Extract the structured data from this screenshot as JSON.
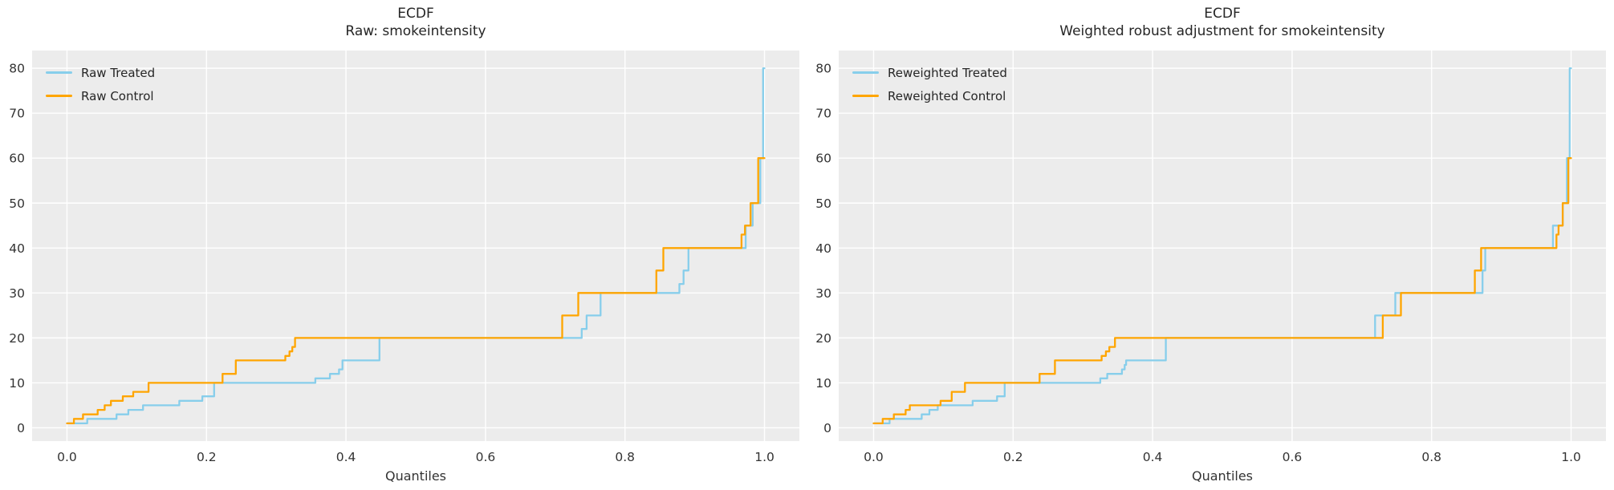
{
  "colors": {
    "figure_background": "#ffffff",
    "axes_background": "#ececec",
    "grid": "#ffffff",
    "text": "#333333",
    "treated": "#87CEEB",
    "control": "#FFA500"
  },
  "chart_data": [
    {
      "type": "line",
      "step": true,
      "title_lines": [
        "ECDF",
        "Raw: smokeintensity"
      ],
      "xlabel": "Quantiles",
      "ylabel": "",
      "xlim": [
        -0.05,
        1.05
      ],
      "ylim": [
        -2.95,
        83.95
      ],
      "x_ticks": [
        0.0,
        0.2,
        0.4,
        0.6,
        0.8,
        1.0
      ],
      "x_tick_labels": [
        "0.0",
        "0.2",
        "0.4",
        "0.6",
        "0.8",
        "1.0"
      ],
      "y_ticks": [
        0,
        10,
        20,
        30,
        40,
        50,
        60,
        70,
        80
      ],
      "y_tick_labels": [
        "0",
        "10",
        "20",
        "30",
        "40",
        "50",
        "60",
        "70",
        "80"
      ],
      "grid": true,
      "legend_position": "upper left",
      "series": [
        {
          "name": "Raw Treated",
          "color": "#87CEEB",
          "points": [
            [
              0.0,
              1
            ],
            [
              0.029,
              2
            ],
            [
              0.071,
              3
            ],
            [
              0.088,
              4
            ],
            [
              0.109,
              5
            ],
            [
              0.161,
              6
            ],
            [
              0.194,
              7
            ],
            [
              0.211,
              10
            ],
            [
              0.356,
              11
            ],
            [
              0.377,
              12
            ],
            [
              0.39,
              13
            ],
            [
              0.395,
              15
            ],
            [
              0.448,
              20
            ],
            [
              0.738,
              22
            ],
            [
              0.745,
              25
            ],
            [
              0.765,
              30
            ],
            [
              0.878,
              32
            ],
            [
              0.884,
              35
            ],
            [
              0.891,
              40
            ],
            [
              0.973,
              45
            ],
            [
              0.983,
              50
            ],
            [
              0.994,
              60
            ],
            [
              0.998,
              80
            ],
            [
              1.0,
              80
            ]
          ]
        },
        {
          "name": "Raw Control",
          "color": "#FFA500",
          "points": [
            [
              0.0,
              1
            ],
            [
              0.01,
              2
            ],
            [
              0.023,
              3
            ],
            [
              0.044,
              4
            ],
            [
              0.054,
              5
            ],
            [
              0.063,
              6
            ],
            [
              0.08,
              7
            ],
            [
              0.095,
              8
            ],
            [
              0.117,
              10
            ],
            [
              0.223,
              12
            ],
            [
              0.242,
              15
            ],
            [
              0.313,
              16
            ],
            [
              0.319,
              17
            ],
            [
              0.323,
              18
            ],
            [
              0.327,
              20
            ],
            [
              0.71,
              25
            ],
            [
              0.733,
              30
            ],
            [
              0.845,
              35
            ],
            [
              0.855,
              40
            ],
            [
              0.967,
              43
            ],
            [
              0.972,
              45
            ],
            [
              0.98,
              50
            ],
            [
              0.991,
              60
            ],
            [
              1.0,
              60
            ]
          ]
        }
      ]
    },
    {
      "type": "line",
      "step": true,
      "title_lines": [
        "ECDF",
        "Weighted robust adjustment for smokeintensity"
      ],
      "xlabel": "Quantiles",
      "ylabel": "",
      "xlim": [
        -0.05,
        1.05
      ],
      "ylim": [
        -2.95,
        83.95
      ],
      "x_ticks": [
        0.0,
        0.2,
        0.4,
        0.6,
        0.8,
        1.0
      ],
      "x_tick_labels": [
        "0.0",
        "0.2",
        "0.4",
        "0.6",
        "0.8",
        "1.0"
      ],
      "y_ticks": [
        0,
        10,
        20,
        30,
        40,
        50,
        60,
        70,
        80
      ],
      "y_tick_labels": [
        "0",
        "10",
        "20",
        "30",
        "40",
        "50",
        "60",
        "70",
        "80"
      ],
      "grid": true,
      "legend_position": "upper left",
      "series": [
        {
          "name": "Reweighted Treated",
          "color": "#87CEEB",
          "points": [
            [
              0.0,
              1
            ],
            [
              0.023,
              2
            ],
            [
              0.069,
              3
            ],
            [
              0.08,
              4
            ],
            [
              0.092,
              5
            ],
            [
              0.142,
              6
            ],
            [
              0.177,
              7
            ],
            [
              0.188,
              10
            ],
            [
              0.325,
              11
            ],
            [
              0.335,
              12
            ],
            [
              0.356,
              13
            ],
            [
              0.36,
              14
            ],
            [
              0.362,
              15
            ],
            [
              0.419,
              20
            ],
            [
              0.719,
              25
            ],
            [
              0.748,
              30
            ],
            [
              0.873,
              35
            ],
            [
              0.877,
              40
            ],
            [
              0.974,
              45
            ],
            [
              0.988,
              50
            ],
            [
              0.994,
              60
            ],
            [
              0.998,
              80
            ],
            [
              1.0,
              80
            ]
          ]
        },
        {
          "name": "Reweighted Control",
          "color": "#FFA500",
          "points": [
            [
              0.0,
              1
            ],
            [
              0.013,
              2
            ],
            [
              0.029,
              3
            ],
            [
              0.046,
              4
            ],
            [
              0.052,
              5
            ],
            [
              0.096,
              6
            ],
            [
              0.112,
              8
            ],
            [
              0.131,
              10
            ],
            [
              0.238,
              12
            ],
            [
              0.26,
              15
            ],
            [
              0.327,
              16
            ],
            [
              0.333,
              17
            ],
            [
              0.338,
              18
            ],
            [
              0.346,
              20
            ],
            [
              0.73,
              25
            ],
            [
              0.756,
              30
            ],
            [
              0.862,
              35
            ],
            [
              0.871,
              40
            ],
            [
              0.979,
              43
            ],
            [
              0.982,
              45
            ],
            [
              0.988,
              50
            ],
            [
              0.996,
              60
            ],
            [
              1.0,
              60
            ]
          ]
        }
      ]
    }
  ]
}
